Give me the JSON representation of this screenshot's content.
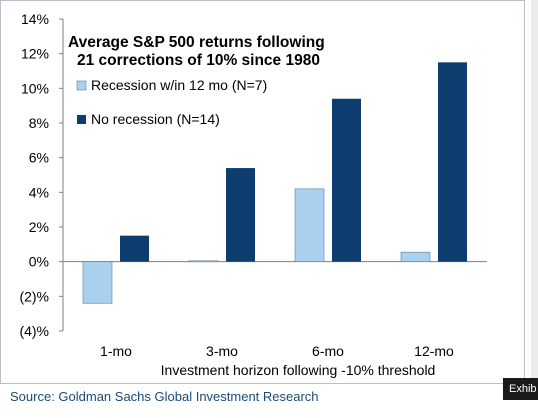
{
  "chart_data": {
    "type": "bar",
    "title_lines": [
      "Average S&P 500 returns following",
      "21 corrections of 10% since 1980"
    ],
    "xlabel": "Investment horizon following -10% threshold",
    "categories": [
      "1-mo",
      "3-mo",
      "6-mo",
      "12-mo"
    ],
    "ylim": [
      -4,
      14
    ],
    "yticks": [
      -4,
      -2,
      0,
      2,
      4,
      6,
      8,
      10,
      12,
      14
    ],
    "ytick_labels": [
      "(4)%",
      "(2)%",
      "0%",
      "2%",
      "4%",
      "6%",
      "8%",
      "10%",
      "12%",
      "14%"
    ],
    "grid": false,
    "legend_position": "upper-left",
    "series": [
      {
        "name": "Recession w/in 12 mo (N=7)",
        "color": "#a9d0ef",
        "values": [
          -2.4,
          0.05,
          4.2,
          0.55
        ]
      },
      {
        "name": "No recession (N=14)",
        "color": "#0d3c6e",
        "values": [
          1.5,
          5.4,
          9.4,
          11.5
        ]
      }
    ]
  },
  "source": "Source: Goldman Sachs Global Investment Research",
  "tab_label": "Exhib"
}
